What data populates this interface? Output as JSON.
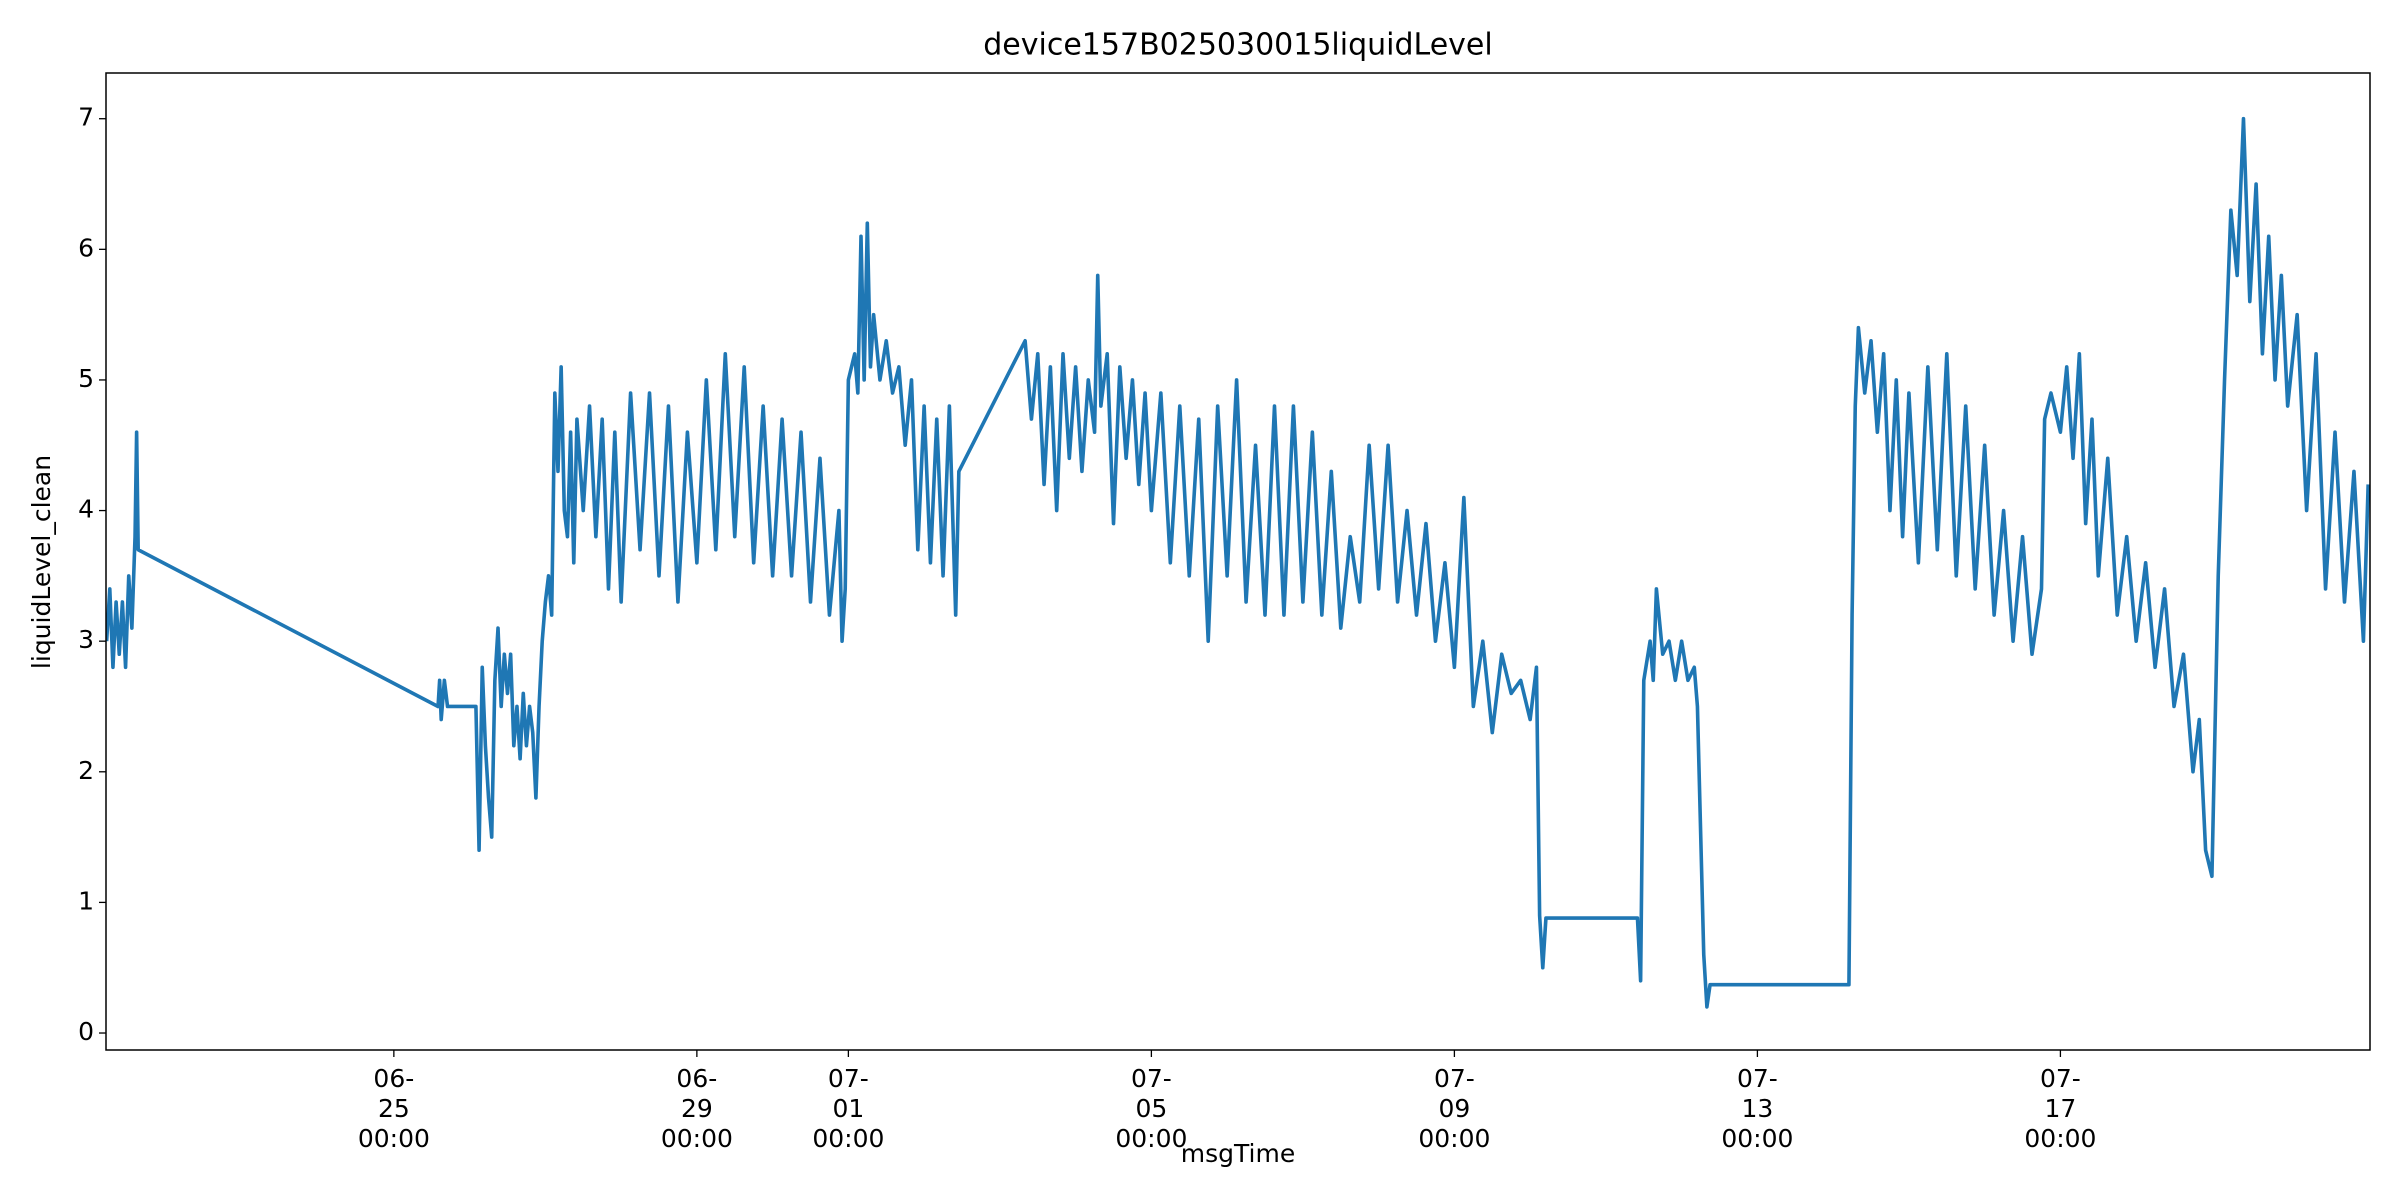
{
  "chart_data": {
    "type": "line",
    "title": "device157B025030015liquidLevel",
    "xlabel": "msgTime",
    "ylabel": "liquidLevel_clean",
    "color": "#1f77b4",
    "xlim": [
      "06-21 04:48",
      "07-21 02:05"
    ],
    "xticks": [
      "06-25 00:00",
      "06-29 00:00",
      "07-01 00:00",
      "07-05 00:00",
      "07-09 00:00",
      "07-13 00:00",
      "07-17 00:00"
    ],
    "ylim": [
      -0.13,
      7.35
    ],
    "yticks": [
      0,
      1,
      2,
      3,
      4,
      5,
      6,
      7
    ],
    "x": [
      "06-21 05:00",
      "06-21 06:00",
      "06-21 07:00",
      "06-21 08:00",
      "06-21 09:00",
      "06-21 10:00",
      "06-21 11:00",
      "06-21 12:00",
      "06-21 13:00",
      "06-21 14:00",
      "06-21 14:30",
      "06-21 15:00",
      "06-25 14:00",
      "06-25 14:30",
      "06-25 15:00",
      "06-25 16:00",
      "06-25 17:00",
      "06-26 02:00",
      "06-26 03:00",
      "06-26 04:00",
      "06-26 05:00",
      "06-26 06:00",
      "06-26 07:00",
      "06-26 08:00",
      "06-26 09:00",
      "06-26 10:00",
      "06-26 11:00",
      "06-26 12:00",
      "06-26 13:00",
      "06-26 14:00",
      "06-26 15:00",
      "06-26 16:00",
      "06-26 17:00",
      "06-26 18:00",
      "06-26 19:00",
      "06-26 20:00",
      "06-26 21:00",
      "06-26 22:00",
      "06-26 23:00",
      "06-27 00:00",
      "06-27 01:00",
      "06-27 02:00",
      "06-27 03:00",
      "06-27 04:00",
      "06-27 05:00",
      "06-27 06:00",
      "06-27 07:00",
      "06-27 08:00",
      "06-27 09:00",
      "06-27 10:00",
      "06-27 12:00",
      "06-27 14:00",
      "06-27 16:00",
      "06-27 18:00",
      "06-27 20:00",
      "06-27 22:00",
      "06-28 00:00",
      "06-28 03:00",
      "06-28 06:00",
      "06-28 09:00",
      "06-28 12:00",
      "06-28 15:00",
      "06-28 18:00",
      "06-28 21:00",
      "06-29 00:00",
      "06-29 03:00",
      "06-29 06:00",
      "06-29 09:00",
      "06-29 12:00",
      "06-29 15:00",
      "06-29 18:00",
      "06-29 21:00",
      "06-30 00:00",
      "06-30 03:00",
      "06-30 06:00",
      "06-30 09:00",
      "06-30 12:00",
      "06-30 15:00",
      "06-30 18:00",
      "06-30 21:00",
      "06-30 22:00",
      "06-30 23:00",
      "07-01 00:00",
      "07-01 02:00",
      "07-01 03:00",
      "07-01 04:00",
      "07-01 05:00",
      "07-01 06:00",
      "07-01 07:00",
      "07-01 08:00",
      "07-01 10:00",
      "07-01 12:00",
      "07-01 14:00",
      "07-01 16:00",
      "07-01 18:00",
      "07-01 20:00",
      "07-01 22:00",
      "07-02 00:00",
      "07-02 02:00",
      "07-02 04:00",
      "07-02 06:00",
      "07-02 08:00",
      "07-02 10:00",
      "07-02 11:00",
      "07-03 08:00",
      "07-03 10:00",
      "07-03 12:00",
      "07-03 14:00",
      "07-03 16:00",
      "07-03 18:00",
      "07-03 20:00",
      "07-03 22:00",
      "07-04 00:00",
      "07-04 02:00",
      "07-04 04:00",
      "07-04 06:00",
      "07-04 07:00",
      "07-04 08:00",
      "07-04 10:00",
      "07-04 12:00",
      "07-04 14:00",
      "07-04 16:00",
      "07-04 18:00",
      "07-04 20:00",
      "07-04 22:00",
      "07-05 00:00",
      "07-05 03:00",
      "07-05 06:00",
      "07-05 09:00",
      "07-05 12:00",
      "07-05 15:00",
      "07-05 18:00",
      "07-05 21:00",
      "07-06 00:00",
      "07-06 03:00",
      "07-06 06:00",
      "07-06 09:00",
      "07-06 12:00",
      "07-06 15:00",
      "07-06 18:00",
      "07-06 21:00",
      "07-07 00:00",
      "07-07 03:00",
      "07-07 06:00",
      "07-07 09:00",
      "07-07 12:00",
      "07-07 15:00",
      "07-07 18:00",
      "07-07 21:00",
      "07-08 00:00",
      "07-08 03:00",
      "07-08 06:00",
      "07-08 09:00",
      "07-08 12:00",
      "07-08 15:00",
      "07-08 18:00",
      "07-08 21:00",
      "07-09 00:00",
      "07-09 03:00",
      "07-09 06:00",
      "07-09 09:00",
      "07-09 12:00",
      "07-09 15:00",
      "07-09 18:00",
      "07-09 21:00",
      "07-10 00:00",
      "07-10 02:00",
      "07-10 03:00",
      "07-10 04:00",
      "07-10 05:00",
      "07-11 10:00",
      "07-11 11:00",
      "07-11 12:00",
      "07-11 14:00",
      "07-11 15:00",
      "07-11 16:00",
      "07-11 18:00",
      "07-11 20:00",
      "07-11 22:00",
      "07-12 00:00",
      "07-12 02:00",
      "07-12 04:00",
      "07-12 05:00",
      "07-12 07:00",
      "07-12 08:00",
      "07-12 09:00",
      "07-14 05:00",
      "07-14 06:00",
      "07-14 07:00",
      "07-14 08:00",
      "07-14 10:00",
      "07-14 12:00",
      "07-14 14:00",
      "07-14 16:00",
      "07-14 18:00",
      "07-14 20:00",
      "07-14 22:00",
      "07-15 00:00",
      "07-15 03:00",
      "07-15 06:00",
      "07-15 09:00",
      "07-15 12:00",
      "07-15 15:00",
      "07-15 18:00",
      "07-15 21:00",
      "07-16 00:00",
      "07-16 03:00",
      "07-16 06:00",
      "07-16 09:00",
      "07-16 12:00",
      "07-16 15:00",
      "07-16 18:00",
      "07-16 19:00",
      "07-16 21:00",
      "07-17 00:00",
      "07-17 02:00",
      "07-17 04:00",
      "07-17 06:00",
      "07-17 08:00",
      "07-17 10:00",
      "07-17 12:00",
      "07-17 15:00",
      "07-17 18:00",
      "07-17 21:00",
      "07-18 00:00",
      "07-18 03:00",
      "07-18 06:00",
      "07-18 09:00",
      "07-18 12:00",
      "07-18 15:00",
      "07-18 18:00",
      "07-18 20:00",
      "07-18 22:00",
      "07-19 00:00",
      "07-19 02:00",
      "07-19 04:00",
      "07-19 06:00",
      "07-19 08:00",
      "07-19 10:00",
      "07-19 12:00",
      "07-19 14:00",
      "07-19 16:00",
      "07-19 18:00",
      "07-19 20:00",
      "07-19 22:00",
      "07-20 00:00",
      "07-20 03:00",
      "07-20 06:00",
      "07-20 09:00",
      "07-20 12:00",
      "07-20 15:00",
      "07-20 18:00",
      "07-20 21:00",
      "07-21 00:00",
      "07-21 01:30"
    ],
    "values": [
      3.0,
      3.4,
      2.8,
      3.3,
      2.9,
      3.3,
      2.8,
      3.5,
      3.1,
      3.8,
      4.6,
      3.7,
      2.5,
      2.7,
      2.4,
      2.7,
      2.5,
      2.5,
      1.4,
      2.8,
      2.2,
      1.8,
      1.5,
      2.7,
      3.1,
      2.5,
      2.9,
      2.6,
      2.9,
      2.2,
      2.5,
      2.1,
      2.6,
      2.2,
      2.5,
      2.3,
      1.8,
      2.5,
      3.0,
      3.3,
      3.5,
      3.2,
      4.9,
      4.3,
      5.1,
      4.0,
      3.8,
      4.6,
      3.6,
      4.7,
      4.0,
      4.8,
      3.8,
      4.7,
      3.4,
      4.6,
      3.3,
      4.9,
      3.7,
      4.9,
      3.5,
      4.8,
      3.3,
      4.6,
      3.6,
      5.0,
      3.7,
      5.2,
      3.8,
      5.1,
      3.6,
      4.8,
      3.5,
      4.7,
      3.5,
      4.6,
      3.3,
      4.4,
      3.2,
      4.0,
      3.0,
      3.4,
      5.0,
      5.2,
      4.9,
      6.1,
      5.0,
      6.2,
      5.1,
      5.5,
      5.0,
      5.3,
      4.9,
      5.1,
      4.5,
      5.0,
      3.7,
      4.8,
      3.6,
      4.7,
      3.5,
      4.8,
      3.2,
      4.3,
      5.3,
      4.7,
      5.2,
      4.2,
      5.1,
      4.0,
      5.2,
      4.4,
      5.1,
      4.3,
      5.0,
      4.6,
      5.8,
      4.8,
      5.2,
      3.9,
      5.1,
      4.4,
      5.0,
      4.2,
      4.9,
      4.0,
      4.9,
      3.6,
      4.8,
      3.5,
      4.7,
      3.0,
      4.8,
      3.5,
      5.0,
      3.3,
      4.5,
      3.2,
      4.8,
      3.2,
      4.8,
      3.3,
      4.6,
      3.2,
      4.3,
      3.1,
      3.8,
      3.3,
      4.5,
      3.4,
      4.5,
      3.3,
      4.0,
      3.2,
      3.9,
      3.0,
      3.6,
      2.8,
      4.1,
      2.5,
      3.0,
      2.3,
      2.9,
      2.6,
      2.7,
      2.4,
      2.8,
      0.9,
      0.5,
      0.88,
      0.88,
      0.4,
      2.7,
      3.0,
      2.7,
      3.4,
      2.9,
      3.0,
      2.7,
      3.0,
      2.7,
      2.8,
      2.5,
      0.6,
      0.2,
      0.37,
      0.37,
      3.2,
      4.8,
      5.4,
      4.9,
      5.3,
      4.6,
      5.2,
      4.0,
      5.0,
      3.8,
      4.9,
      3.6,
      5.1,
      3.7,
      5.2,
      3.5,
      4.8,
      3.4,
      4.5,
      3.2,
      4.0,
      3.0,
      3.8,
      2.9,
      3.4,
      4.7,
      4.9,
      4.6,
      5.1,
      4.4,
      5.2,
      3.9,
      4.7,
      3.5,
      4.4,
      3.2,
      3.8,
      3.0,
      3.6,
      2.8,
      3.4,
      2.5,
      2.9,
      2.0,
      2.4,
      1.4,
      1.2,
      3.5,
      5.0,
      6.3,
      5.8,
      7.0,
      5.6,
      6.5,
      5.2,
      6.1,
      5.0,
      5.8,
      4.8,
      5.5,
      4.0,
      5.2,
      3.4,
      4.6,
      3.3,
      4.3,
      3.0,
      4.2
    ]
  }
}
